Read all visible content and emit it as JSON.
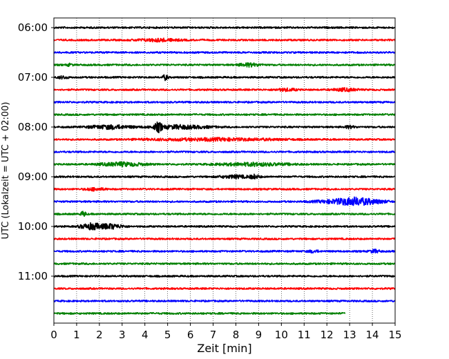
{
  "chart_data": {
    "type": "line",
    "title": "",
    "xlabel": "Zeit  [min]",
    "ylabel": "UTC (Lokalzeit = UTC + 02:00)",
    "xlim": [
      0,
      15
    ],
    "x_ticks": [
      "0",
      "1",
      "2",
      "3",
      "4",
      "5",
      "6",
      "7",
      "8",
      "9",
      "10",
      "11",
      "12",
      "13",
      "14",
      "15"
    ],
    "y_ticks": [
      "06:00",
      "07:00",
      "08:00",
      "09:00",
      "10:00",
      "11:00"
    ],
    "grid": "vertical dotted",
    "trace_interval_minutes": 15,
    "trace_colors": [
      "#000000",
      "#ff0000",
      "#0000ff",
      "#008000"
    ],
    "series": [
      {
        "start": "06:00",
        "color": "#000000",
        "end_min": 15,
        "events": []
      },
      {
        "start": "06:15",
        "color": "#ff0000",
        "end_min": 15,
        "events": [
          {
            "t": 4.6,
            "amp": 2.2,
            "dur": 1.6
          }
        ]
      },
      {
        "start": "06:30",
        "color": "#0000ff",
        "end_min": 15,
        "events": []
      },
      {
        "start": "06:45",
        "color": "#008000",
        "end_min": 15,
        "events": [
          {
            "t": 0.7,
            "amp": 2.0,
            "dur": 0.2
          },
          {
            "t": 8.6,
            "amp": 2.6,
            "dur": 0.8
          }
        ]
      },
      {
        "start": "07:00",
        "color": "#000000",
        "end_min": 15,
        "events": [
          {
            "t": 0.4,
            "amp": 2.0,
            "dur": 0.4
          },
          {
            "t": 4.9,
            "amp": 4.0,
            "dur": 0.2
          }
        ]
      },
      {
        "start": "07:15",
        "color": "#ff0000",
        "end_min": 15,
        "events": [
          {
            "t": 10.2,
            "amp": 2.0,
            "dur": 0.8
          },
          {
            "t": 12.8,
            "amp": 2.2,
            "dur": 0.9
          }
        ]
      },
      {
        "start": "07:30",
        "color": "#0000ff",
        "end_min": 15,
        "events": []
      },
      {
        "start": "07:45",
        "color": "#008000",
        "end_min": 15,
        "events": []
      },
      {
        "start": "08:00",
        "color": "#000000",
        "end_min": 15,
        "events": [
          {
            "t": 2.5,
            "amp": 3.0,
            "dur": 1.6
          },
          {
            "t": 4.6,
            "amp": 8.0,
            "dur": 0.3
          },
          {
            "t": 5.5,
            "amp": 2.8,
            "dur": 2.2
          },
          {
            "t": 13.0,
            "amp": 2.0,
            "dur": 0.4
          }
        ]
      },
      {
        "start": "08:15",
        "color": "#ff0000",
        "end_min": 15,
        "events": [
          {
            "t": 7.0,
            "amp": 2.0,
            "dur": 5.0
          }
        ]
      },
      {
        "start": "08:30",
        "color": "#0000ff",
        "end_min": 15,
        "events": []
      },
      {
        "start": "08:45",
        "color": "#008000",
        "end_min": 15,
        "events": [
          {
            "t": 3.0,
            "amp": 3.0,
            "dur": 1.6
          },
          {
            "t": 8.8,
            "amp": 2.4,
            "dur": 2.6
          }
        ]
      },
      {
        "start": "09:00",
        "color": "#000000",
        "end_min": 15,
        "events": [
          {
            "t": 8.0,
            "amp": 2.2,
            "dur": 1.2
          },
          {
            "t": 8.8,
            "amp": 3.2,
            "dur": 0.4
          }
        ]
      },
      {
        "start": "09:15",
        "color": "#ff0000",
        "end_min": 15,
        "events": [
          {
            "t": 1.8,
            "amp": 2.2,
            "dur": 0.7
          }
        ]
      },
      {
        "start": "09:30",
        "color": "#0000ff",
        "end_min": 15,
        "events": [
          {
            "t": 13.2,
            "amp": 6.0,
            "dur": 1.8
          },
          {
            "t": 12.6,
            "amp": 2.4,
            "dur": 2.0
          }
        ]
      },
      {
        "start": "09:45",
        "color": "#008000",
        "end_min": 15,
        "events": [
          {
            "t": 1.3,
            "amp": 4.0,
            "dur": 0.2
          }
        ]
      },
      {
        "start": "10:00",
        "color": "#000000",
        "end_min": 15,
        "events": [
          {
            "t": 1.7,
            "amp": 5.0,
            "dur": 0.8
          },
          {
            "t": 2.4,
            "amp": 4.0,
            "dur": 1.0
          }
        ]
      },
      {
        "start": "10:15",
        "color": "#ff0000",
        "end_min": 15,
        "events": []
      },
      {
        "start": "10:30",
        "color": "#0000ff",
        "end_min": 15,
        "events": [
          {
            "t": 11.4,
            "amp": 2.0,
            "dur": 0.4
          },
          {
            "t": 14.1,
            "amp": 2.4,
            "dur": 0.4
          }
        ]
      },
      {
        "start": "10:45",
        "color": "#008000",
        "end_min": 15,
        "events": []
      },
      {
        "start": "11:00",
        "color": "#000000",
        "end_min": 15,
        "events": []
      },
      {
        "start": "11:15",
        "color": "#ff0000",
        "end_min": 15,
        "events": []
      },
      {
        "start": "11:30",
        "color": "#0000ff",
        "end_min": 15,
        "events": []
      },
      {
        "start": "11:45",
        "color": "#008000",
        "end_min": 12.8,
        "events": []
      }
    ]
  }
}
